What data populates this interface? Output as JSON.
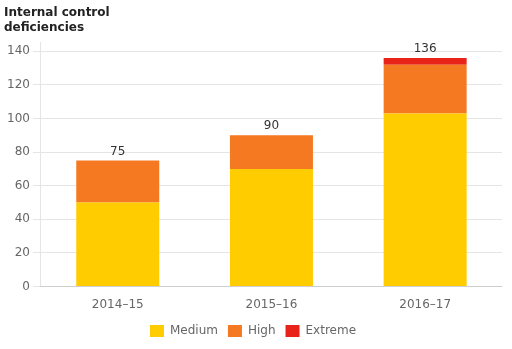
{
  "chart_data": {
    "type": "bar",
    "ylabel": "Internal control\ndeficiencies",
    "categories": [
      "2014–15",
      "2015–16",
      "2016–17"
    ],
    "series": [
      {
        "name": "Medium",
        "color": "#FFCC00",
        "values": [
          50,
          70,
          103
        ]
      },
      {
        "name": "High",
        "color": "#F47920",
        "values": [
          25,
          20,
          29
        ]
      },
      {
        "name": "Extreme",
        "color": "#E8231A",
        "values": [
          0,
          0,
          4
        ]
      }
    ],
    "totals": [
      75,
      90,
      136
    ],
    "stacked": true,
    "ylim": [
      0,
      145
    ],
    "yticks": [
      0,
      20,
      40,
      60,
      80,
      100,
      120,
      140
    ],
    "grid": true,
    "legend": "bottom"
  }
}
